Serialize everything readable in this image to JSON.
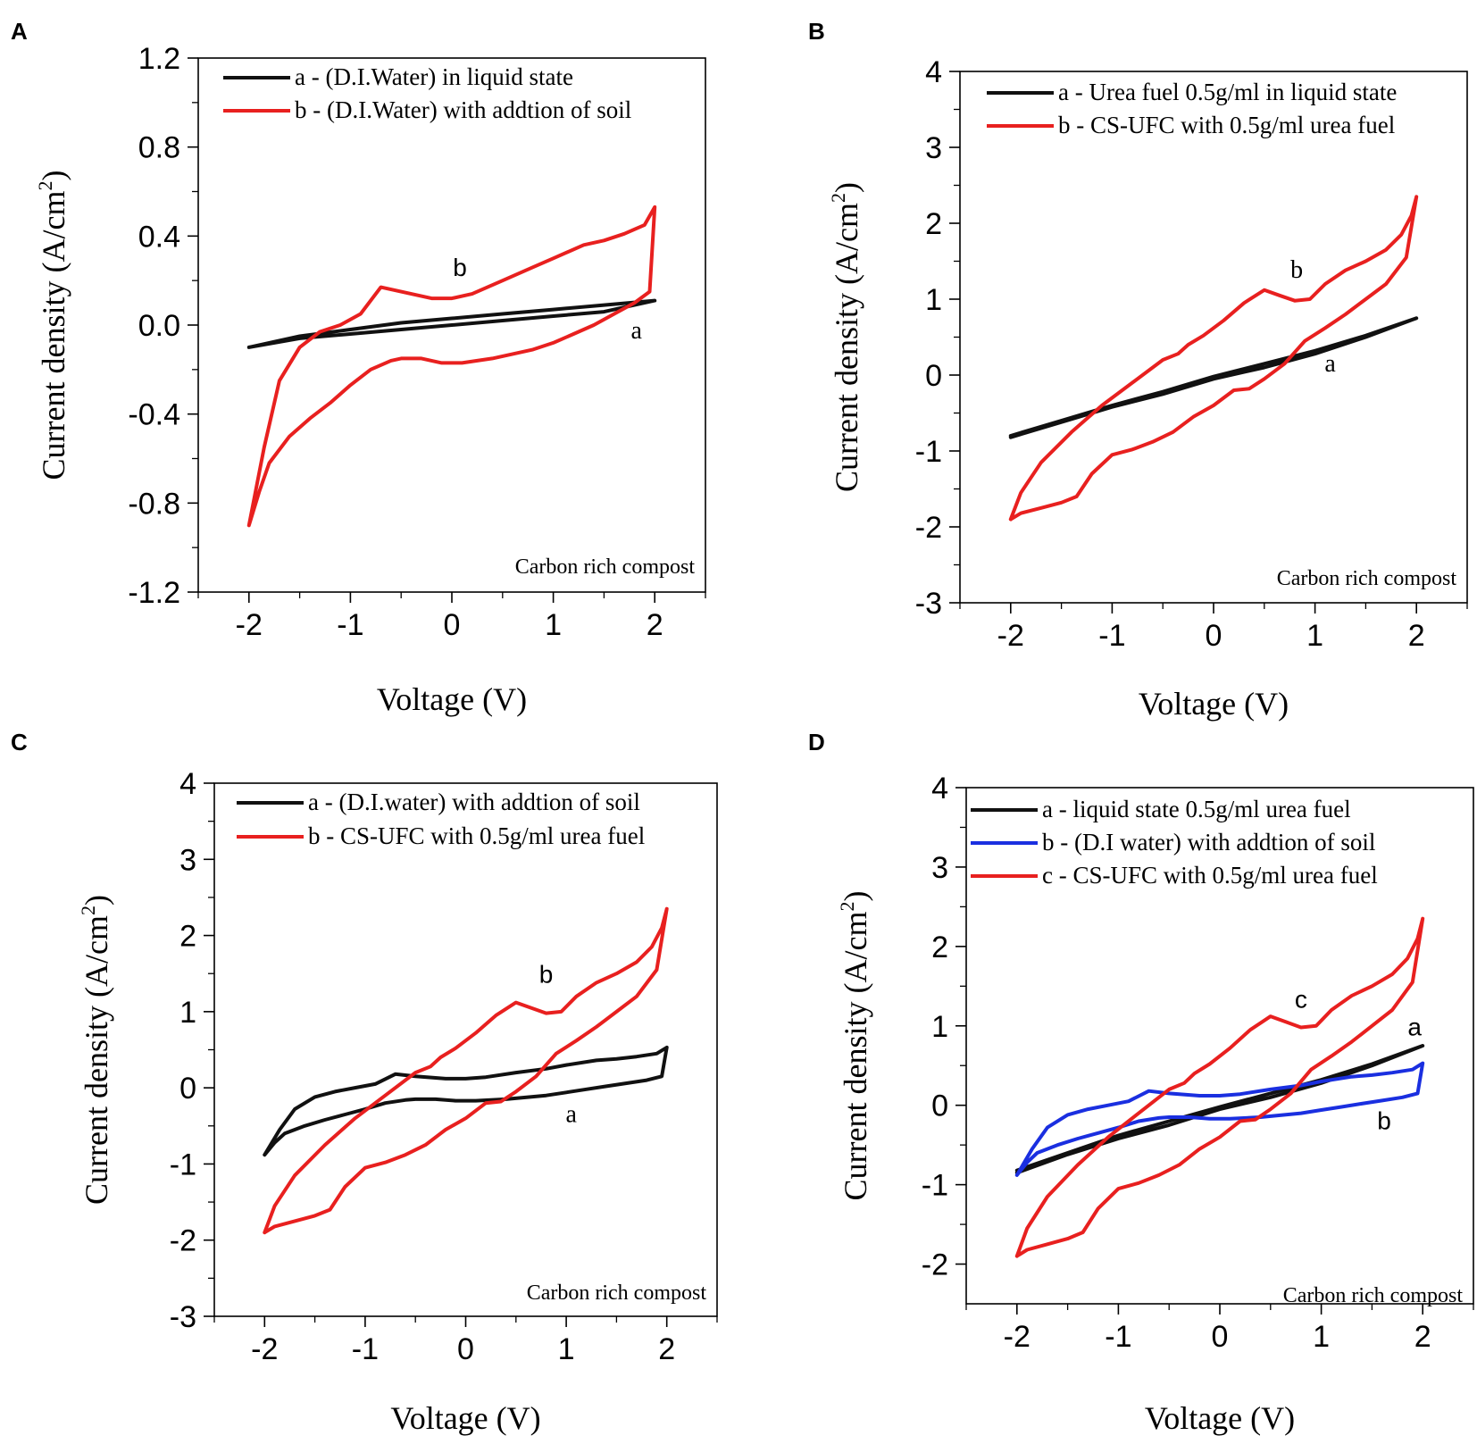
{
  "figure": {
    "colors": {
      "black": "#111111",
      "red": "#e8201f",
      "blue": "#1a2fe0"
    }
  },
  "chart_data": [
    {
      "panel": "A",
      "type": "line",
      "title": "",
      "xlabel": "Voltage (V)",
      "ylabel": "Current density (A/cm",
      "ylabel_sup": "2",
      "ylabel_close": ")",
      "xlim": [
        -2.5,
        2.5
      ],
      "ylim": [
        -1.2,
        1.2
      ],
      "xticks": [
        -2,
        -1,
        0,
        1,
        2
      ],
      "xtick_labels": [
        "-2",
        "-1",
        "0",
        "1",
        "2"
      ],
      "yticks": [
        -1.2,
        -0.8,
        -0.4,
        0.0,
        0.4,
        0.8,
        1.2
      ],
      "ytick_labels": [
        "-1.2",
        "-0.8",
        "-0.4",
        "0.0",
        "0.4",
        "0.8",
        "1.2"
      ],
      "annotation": "Carbon rich compost",
      "series": [
        {
          "key": "a",
          "legend": "a - (D.I.Water) in liquid state",
          "color": "#111111",
          "label": "a",
          "label_at": [
            1.82,
            -0.06
          ],
          "label_font": "serif",
          "x": [
            -2.0,
            -1.5,
            -1.0,
            -0.5,
            0.0,
            0.5,
            1.0,
            1.5,
            2.0,
            1.5,
            1.0,
            0.5,
            0.0,
            -0.5,
            -1.0,
            -1.5,
            -2.0
          ],
          "y": [
            -0.1,
            -0.06,
            -0.04,
            -0.02,
            0.0,
            0.02,
            0.04,
            0.06,
            0.11,
            0.09,
            0.07,
            0.05,
            0.03,
            0.01,
            -0.02,
            -0.05,
            -0.1
          ]
        },
        {
          "key": "b",
          "legend": "b - (D.I.Water) with addtion of soil",
          "color": "#e8201f",
          "label": "b",
          "label_at": [
            0.08,
            0.22
          ],
          "label_font": "sans",
          "x": [
            -2.0,
            -1.9,
            -1.8,
            -1.6,
            -1.4,
            -1.2,
            -1.0,
            -0.8,
            -0.6,
            -0.5,
            -0.3,
            -0.1,
            0.1,
            0.4,
            0.8,
            1.0,
            1.2,
            1.4,
            1.6,
            1.8,
            1.95,
            2.0,
            1.9,
            1.7,
            1.5,
            1.3,
            1.0,
            0.8,
            0.5,
            0.2,
            0.0,
            -0.2,
            -0.5,
            -0.7,
            -0.9,
            -1.1,
            -1.3,
            -1.5,
            -1.7,
            -1.85,
            -2.0
          ],
          "y": [
            -0.9,
            -0.75,
            -0.62,
            -0.5,
            -0.42,
            -0.35,
            -0.27,
            -0.2,
            -0.16,
            -0.15,
            -0.15,
            -0.17,
            -0.17,
            -0.15,
            -0.11,
            -0.08,
            -0.04,
            0.0,
            0.05,
            0.1,
            0.15,
            0.53,
            0.45,
            0.41,
            0.38,
            0.36,
            0.3,
            0.26,
            0.2,
            0.14,
            0.12,
            0.12,
            0.15,
            0.17,
            0.05,
            0.0,
            -0.03,
            -0.1,
            -0.25,
            -0.55,
            -0.9
          ]
        }
      ]
    },
    {
      "panel": "B",
      "type": "line",
      "title": "",
      "xlabel": "Voltage (V)",
      "ylabel": "Current density (A/cm",
      "ylabel_sup": "2",
      "ylabel_close": ")",
      "xlim": [
        -2.5,
        2.5
      ],
      "ylim": [
        -3,
        4
      ],
      "xticks": [
        -2,
        -1,
        0,
        1,
        2
      ],
      "xtick_labels": [
        "-2",
        "-1",
        "0",
        "1",
        "2"
      ],
      "yticks": [
        -3,
        -2,
        -1,
        0,
        1,
        2,
        3,
        4
      ],
      "ytick_labels": [
        "-3",
        "-2",
        "-1",
        "0",
        "1",
        "2",
        "3",
        "4"
      ],
      "annotation": "Carbon rich compost",
      "series": [
        {
          "key": "a",
          "legend": "a - Urea fuel 0.5g/ml in liquid state",
          "color": "#111111",
          "label": "a",
          "label_at": [
            1.15,
            0.05
          ],
          "label_font": "serif",
          "x": [
            -2.0,
            -1.5,
            -1.0,
            -0.5,
            0.0,
            0.5,
            1.0,
            1.5,
            2.0,
            1.5,
            1.0,
            0.5,
            0.0,
            -0.5,
            -1.0,
            -1.5,
            -2.0
          ],
          "y": [
            -0.8,
            -0.6,
            -0.4,
            -0.22,
            -0.02,
            0.15,
            0.32,
            0.52,
            0.75,
            0.5,
            0.28,
            0.1,
            -0.05,
            -0.25,
            -0.42,
            -0.62,
            -0.82
          ]
        },
        {
          "key": "b",
          "legend": "b - CS-UFC with 0.5g/ml urea fuel",
          "color": "#e8201f",
          "label": "b",
          "label_at": [
            0.82,
            1.28
          ],
          "label_font": "serif",
          "x": [
            -2.0,
            -1.9,
            -1.7,
            -1.5,
            -1.35,
            -1.2,
            -1.0,
            -0.8,
            -0.6,
            -0.4,
            -0.2,
            0.0,
            0.2,
            0.35,
            0.5,
            0.7,
            0.9,
            1.1,
            1.3,
            1.5,
            1.7,
            1.9,
            2.0,
            1.95,
            1.85,
            1.7,
            1.5,
            1.3,
            1.1,
            0.95,
            0.8,
            0.65,
            0.5,
            0.3,
            0.1,
            -0.1,
            -0.25,
            -0.35,
            -0.5,
            -0.8,
            -1.1,
            -1.4,
            -1.7,
            -1.9,
            -2.0
          ],
          "y": [
            -1.9,
            -1.82,
            -1.75,
            -1.68,
            -1.6,
            -1.3,
            -1.05,
            -0.98,
            -0.88,
            -0.75,
            -0.55,
            -0.4,
            -0.2,
            -0.18,
            -0.05,
            0.15,
            0.45,
            0.62,
            0.8,
            1.0,
            1.2,
            1.55,
            2.35,
            2.1,
            1.85,
            1.65,
            1.5,
            1.38,
            1.2,
            1.0,
            0.98,
            1.05,
            1.12,
            0.95,
            0.72,
            0.52,
            0.4,
            0.28,
            0.2,
            -0.1,
            -0.4,
            -0.75,
            -1.15,
            -1.55,
            -1.9
          ]
        }
      ]
    },
    {
      "panel": "C",
      "type": "line",
      "title": "",
      "xlabel": "Voltage (V)",
      "ylabel": "Current density (A/cm",
      "ylabel_sup": "2",
      "ylabel_close": ")",
      "xlim": [
        -2.5,
        2.5
      ],
      "ylim": [
        -3,
        4
      ],
      "xticks": [
        -2,
        -1,
        0,
        1,
        2
      ],
      "xtick_labels": [
        "-2",
        "-1",
        "0",
        "1",
        "2"
      ],
      "yticks": [
        -3,
        -2,
        -1,
        0,
        1,
        2,
        3,
        4
      ],
      "ytick_labels": [
        "-3",
        "-2",
        "-1",
        "0",
        "1",
        "2",
        "3",
        "4"
      ],
      "annotation": "Carbon rich compost",
      "series": [
        {
          "key": "a",
          "legend": "a - (D.I.water) with addtion of soil",
          "color": "#111111",
          "label": "a",
          "label_at": [
            1.05,
            -0.45
          ],
          "label_font": "serif",
          "x": [
            -2.0,
            -1.9,
            -1.8,
            -1.6,
            -1.4,
            -1.2,
            -1.0,
            -0.8,
            -0.6,
            -0.5,
            -0.3,
            -0.1,
            0.1,
            0.4,
            0.8,
            1.0,
            1.2,
            1.4,
            1.6,
            1.8,
            1.95,
            2.0,
            1.9,
            1.7,
            1.5,
            1.3,
            1.0,
            0.8,
            0.5,
            0.2,
            0.0,
            -0.2,
            -0.5,
            -0.7,
            -0.9,
            -1.1,
            -1.3,
            -1.5,
            -1.7,
            -1.85,
            -2.0
          ],
          "y": [
            -0.88,
            -0.72,
            -0.6,
            -0.5,
            -0.42,
            -0.35,
            -0.28,
            -0.2,
            -0.16,
            -0.15,
            -0.15,
            -0.17,
            -0.17,
            -0.15,
            -0.1,
            -0.06,
            -0.02,
            0.02,
            0.06,
            0.1,
            0.15,
            0.53,
            0.45,
            0.41,
            0.38,
            0.36,
            0.3,
            0.25,
            0.2,
            0.14,
            0.12,
            0.12,
            0.15,
            0.18,
            0.05,
            0.0,
            -0.05,
            -0.12,
            -0.28,
            -0.55,
            -0.88
          ]
        },
        {
          "key": "b",
          "legend": "b - CS-UFC with 0.5g/ml urea fuel",
          "color": "#e8201f",
          "label": "b",
          "label_at": [
            0.8,
            1.38
          ],
          "label_font": "sans",
          "x": [
            -2.0,
            -1.9,
            -1.7,
            -1.5,
            -1.35,
            -1.2,
            -1.0,
            -0.8,
            -0.6,
            -0.4,
            -0.2,
            0.0,
            0.2,
            0.35,
            0.5,
            0.7,
            0.9,
            1.1,
            1.3,
            1.5,
            1.7,
            1.9,
            2.0,
            1.95,
            1.85,
            1.7,
            1.5,
            1.3,
            1.1,
            0.95,
            0.8,
            0.65,
            0.5,
            0.3,
            0.1,
            -0.1,
            -0.25,
            -0.35,
            -0.5,
            -0.8,
            -1.1,
            -1.4,
            -1.7,
            -1.9,
            -2.0
          ],
          "y": [
            -1.9,
            -1.82,
            -1.75,
            -1.68,
            -1.6,
            -1.3,
            -1.05,
            -0.98,
            -0.88,
            -0.75,
            -0.55,
            -0.4,
            -0.2,
            -0.18,
            -0.05,
            0.15,
            0.45,
            0.62,
            0.8,
            1.0,
            1.2,
            1.55,
            2.35,
            2.1,
            1.85,
            1.65,
            1.5,
            1.38,
            1.2,
            1.0,
            0.98,
            1.05,
            1.12,
            0.95,
            0.72,
            0.52,
            0.4,
            0.28,
            0.2,
            -0.1,
            -0.4,
            -0.75,
            -1.15,
            -1.55,
            -1.9
          ]
        }
      ]
    },
    {
      "panel": "D",
      "type": "line",
      "title": "",
      "xlabel": "Voltage (V)",
      "ylabel": "Current density (A/cm",
      "ylabel_sup": "2",
      "ylabel_close": ")",
      "xlim": [
        -2.5,
        2.5
      ],
      "ylim": [
        -2.5,
        4
      ],
      "xticks": [
        -2,
        -1,
        0,
        1,
        2
      ],
      "xtick_labels": [
        "-2",
        "-1",
        "0",
        "1",
        "2"
      ],
      "yticks": [
        -2,
        -1,
        0,
        1,
        2,
        3,
        4
      ],
      "ytick_labels": [
        "-2",
        "-1",
        "0",
        "1",
        "2",
        "3",
        "4"
      ],
      "annotation": "Carbon rich compost",
      "series": [
        {
          "key": "a",
          "legend": "a - liquid state 0.5g/ml urea fuel",
          "color": "#111111",
          "label": "a",
          "label_at": [
            1.92,
            0.88
          ],
          "label_font": "sans",
          "x": [
            -2.0,
            -1.5,
            -1.0,
            -0.5,
            0.0,
            0.5,
            1.0,
            1.5,
            2.0,
            1.5,
            1.0,
            0.5,
            0.0,
            -0.5,
            -1.0,
            -1.5,
            -2.0
          ],
          "y": [
            -0.82,
            -0.6,
            -0.38,
            -0.2,
            -0.02,
            0.15,
            0.32,
            0.52,
            0.75,
            0.5,
            0.28,
            0.1,
            -0.05,
            -0.25,
            -0.42,
            -0.62,
            -0.85
          ]
        },
        {
          "key": "b",
          "legend": "b - (D.I water) with addtion of soil",
          "color": "#1a2fe0",
          "label": "b",
          "label_at": [
            1.62,
            -0.3
          ],
          "label_font": "sans",
          "x": [
            -2.0,
            -1.9,
            -1.8,
            -1.6,
            -1.4,
            -1.2,
            -1.0,
            -0.8,
            -0.6,
            -0.5,
            -0.3,
            -0.1,
            0.1,
            0.4,
            0.8,
            1.0,
            1.2,
            1.4,
            1.6,
            1.8,
            1.95,
            2.0,
            1.9,
            1.7,
            1.5,
            1.3,
            1.0,
            0.8,
            0.5,
            0.2,
            0.0,
            -0.2,
            -0.5,
            -0.7,
            -0.9,
            -1.1,
            -1.3,
            -1.5,
            -1.7,
            -1.85,
            -2.0
          ],
          "y": [
            -0.88,
            -0.72,
            -0.6,
            -0.5,
            -0.42,
            -0.35,
            -0.28,
            -0.2,
            -0.16,
            -0.15,
            -0.15,
            -0.17,
            -0.17,
            -0.15,
            -0.1,
            -0.06,
            -0.02,
            0.02,
            0.06,
            0.1,
            0.15,
            0.53,
            0.45,
            0.41,
            0.38,
            0.36,
            0.3,
            0.25,
            0.2,
            0.14,
            0.12,
            0.12,
            0.15,
            0.18,
            0.05,
            0.0,
            -0.05,
            -0.12,
            -0.28,
            -0.55,
            -0.88
          ]
        },
        {
          "key": "c",
          "legend": "c - CS-UFC with 0.5g/ml urea fuel",
          "color": "#e8201f",
          "label": "c",
          "label_at": [
            0.8,
            1.23
          ],
          "label_font": "sans",
          "x": [
            -2.0,
            -1.9,
            -1.7,
            -1.5,
            -1.35,
            -1.2,
            -1.0,
            -0.8,
            -0.6,
            -0.4,
            -0.2,
            0.0,
            0.2,
            0.35,
            0.5,
            0.7,
            0.9,
            1.1,
            1.3,
            1.5,
            1.7,
            1.9,
            2.0,
            1.95,
            1.85,
            1.7,
            1.5,
            1.3,
            1.1,
            0.95,
            0.8,
            0.65,
            0.5,
            0.3,
            0.1,
            -0.1,
            -0.25,
            -0.35,
            -0.5,
            -0.8,
            -1.1,
            -1.4,
            -1.7,
            -1.9,
            -2.0
          ],
          "y": [
            -1.9,
            -1.82,
            -1.75,
            -1.68,
            -1.6,
            -1.3,
            -1.05,
            -0.98,
            -0.88,
            -0.75,
            -0.55,
            -0.4,
            -0.2,
            -0.18,
            -0.05,
            0.15,
            0.45,
            0.62,
            0.8,
            1.0,
            1.2,
            1.55,
            2.35,
            2.1,
            1.85,
            1.65,
            1.5,
            1.38,
            1.2,
            1.0,
            0.98,
            1.05,
            1.12,
            0.95,
            0.72,
            0.52,
            0.4,
            0.28,
            0.2,
            -0.1,
            -0.4,
            -0.75,
            -1.15,
            -1.55,
            -1.9
          ]
        }
      ]
    }
  ]
}
